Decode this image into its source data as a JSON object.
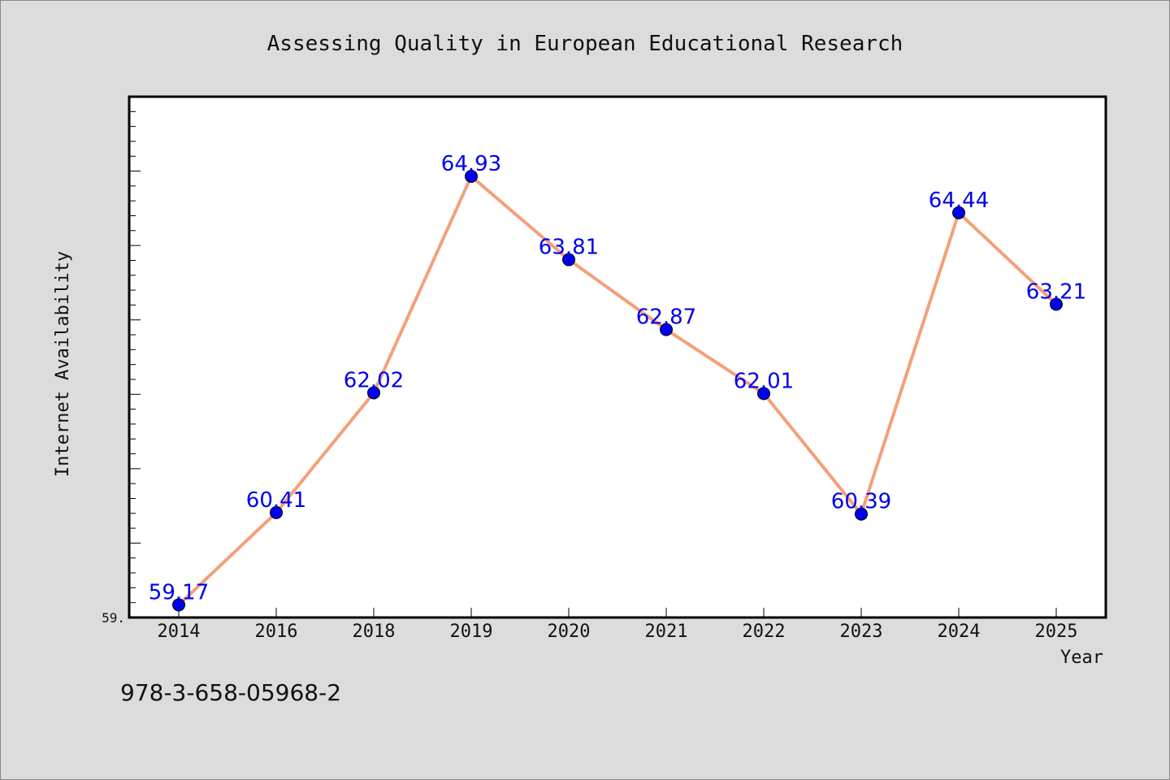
{
  "chart_data": {
    "type": "line",
    "title": "Assessing Quality in European Educational Research",
    "xlabel": "Year",
    "ylabel": "Internet Availability",
    "categories": [
      "2014",
      "2016",
      "2018",
      "2019",
      "2020",
      "2021",
      "2022",
      "2023",
      "2024",
      "2025"
    ],
    "series": [
      {
        "values": [
          59.17,
          60.41,
          62.02,
          64.93,
          63.81,
          62.87,
          62.01,
          60.39,
          64.44,
          63.21
        ],
        "labels": [
          "59.17",
          "60.41",
          "62.02",
          "64.93",
          "63.81",
          "62.87",
          "62.01",
          "60.39",
          "64.44",
          "63.21"
        ]
      }
    ],
    "ylim": [
      59.0,
      66.0
    ],
    "y_tick_labels": [
      "59."
    ],
    "grid": false,
    "line_color": "#f4a07a",
    "marker_color": "#0000ee",
    "label_color": "#0000ee",
    "axes_color": "#000000"
  },
  "footer": {
    "isbn": "978-3-658-05968-2"
  }
}
